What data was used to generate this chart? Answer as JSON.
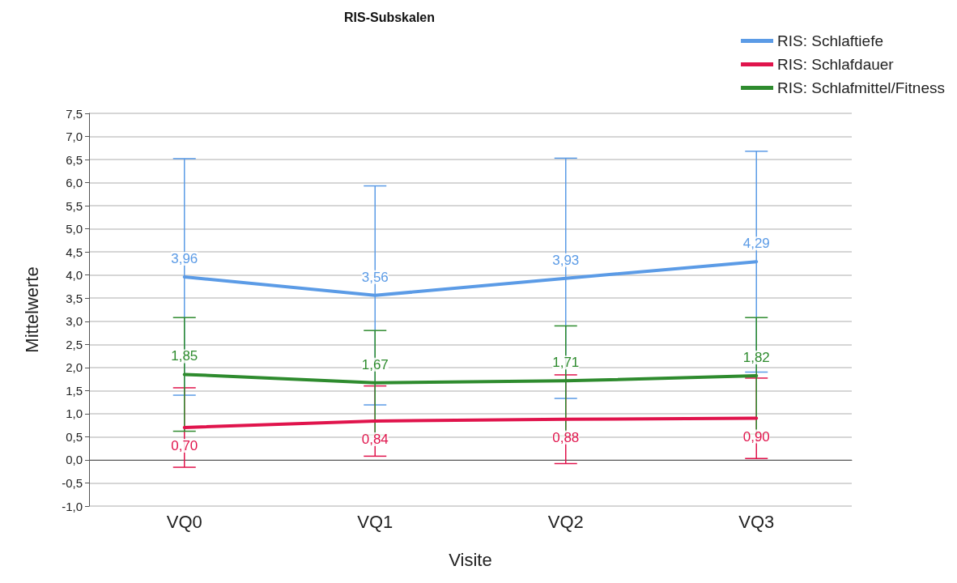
{
  "chart_data": {
    "type": "line",
    "title": "RIS-Subskalen",
    "xlabel": "Visite",
    "ylabel": "Mittelwerte",
    "categories": [
      "VQ0",
      "VQ1",
      "VQ2",
      "VQ3"
    ],
    "series": [
      {
        "name": "RIS: Schlaftiefe",
        "color": "#5b9be6",
        "values": [
          3.96,
          3.56,
          3.93,
          4.29
        ],
        "errors": [
          2.56,
          2.37,
          2.6,
          2.39
        ],
        "value_labels": [
          "3,96",
          "3,56",
          "3,93",
          "4,29"
        ]
      },
      {
        "name": "RIS: Schlafdauer",
        "color": "#e0144c",
        "values": [
          0.7,
          0.84,
          0.88,
          0.9
        ],
        "errors": [
          0.86,
          0.76,
          0.96,
          0.87
        ],
        "value_labels": [
          "0,70",
          "0,84",
          "0,88",
          "0,90"
        ]
      },
      {
        "name": "RIS: Schlafmittel/Fitness",
        "color": "#2e8b2e",
        "values": [
          1.85,
          1.67,
          1.71,
          1.82
        ],
        "errors": [
          1.23,
          1.13,
          1.19,
          1.26
        ],
        "value_labels": [
          "1,85",
          "1,67",
          "1,71",
          "1,82"
        ]
      }
    ],
    "ylim": [
      -1,
      7.5
    ],
    "yticks": [
      {
        "value": -1,
        "label": "-1,0"
      },
      {
        "value": -0.5,
        "label": "-0,5"
      },
      {
        "value": 0,
        "label": "0,0"
      },
      {
        "value": 0.5,
        "label": "0,5"
      },
      {
        "value": 1,
        "label": "1,0"
      },
      {
        "value": 1.5,
        "label": "1,5"
      },
      {
        "value": 2,
        "label": "2,0"
      },
      {
        "value": 2.5,
        "label": "2,5"
      },
      {
        "value": 3,
        "label": "3,0"
      },
      {
        "value": 3.5,
        "label": "3,5"
      },
      {
        "value": 4,
        "label": "4,0"
      },
      {
        "value": 4.5,
        "label": "4,5"
      },
      {
        "value": 5,
        "label": "5,0"
      },
      {
        "value": 5.5,
        "label": "5,5"
      },
      {
        "value": 6,
        "label": "6,0"
      },
      {
        "value": 6.5,
        "label": "6,5"
      },
      {
        "value": 7,
        "label": "7,0"
      },
      {
        "value": 7.5,
        "label": "7,5"
      }
    ],
    "grid": "y",
    "legend": "top right",
    "marker": "none",
    "line_style": "solid"
  }
}
